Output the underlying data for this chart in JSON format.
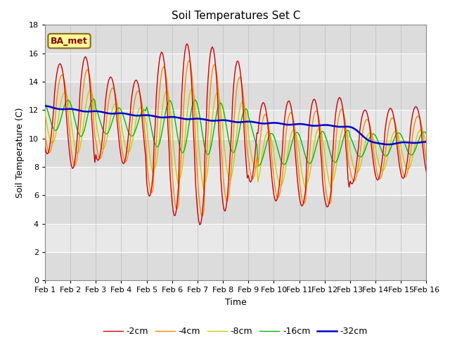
{
  "title": "Soil Temperatures Set C",
  "xlabel": "Time",
  "ylabel": "Soil Temperature (C)",
  "ylim": [
    0,
    18
  ],
  "annotation": "BA_met",
  "legend": [
    "-2cm",
    "-4cm",
    "-8cm",
    "-16cm",
    "-32cm"
  ],
  "colors": [
    "#cc0000",
    "#ff8800",
    "#cccc00",
    "#00bb00",
    "#0000cc"
  ],
  "tick_labels": [
    "Feb 1",
    "Feb 2",
    "Feb 3",
    "Feb 4",
    "Feb 5",
    "Feb 6",
    "Feb 7",
    "Feb 8",
    "Feb 9",
    "Feb 10",
    "Feb 11",
    "Feb 12",
    "Feb 13",
    "Feb 14",
    "Feb 15",
    "Feb 16"
  ],
  "band_colors": [
    "#dcdcdc",
    "#e8e8e8"
  ],
  "yticks": [
    0,
    2,
    4,
    6,
    8,
    10,
    12,
    14,
    16,
    18
  ]
}
